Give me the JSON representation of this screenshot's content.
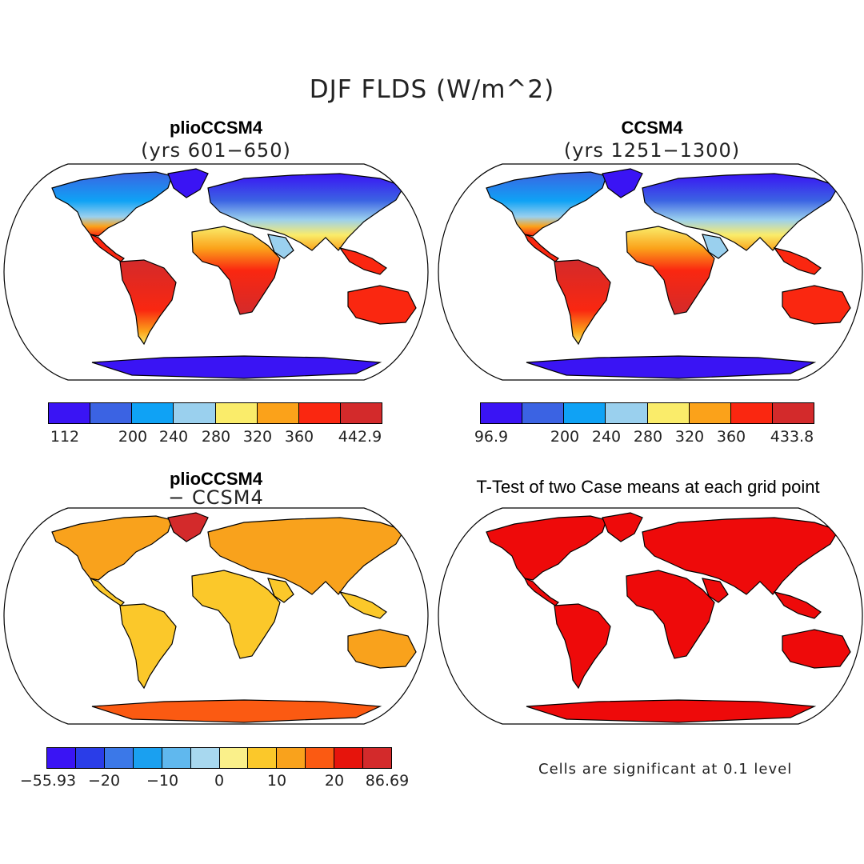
{
  "title": "DJF FLDS (W/m^2)",
  "panels": [
    {
      "title": "plioCCSM4",
      "subtitle": "(yrs 601−650)",
      "colors": [
        "#3a14f4",
        "#3b63e3",
        "#0fa2f5",
        "#9ad0ee",
        "#faec6a",
        "#fba21a",
        "#fa2710",
        "#d32a2b"
      ],
      "ticks": [
        "112",
        "200",
        "240",
        "280",
        "320",
        "360",
        "442.9"
      ]
    },
    {
      "title": "CCSM4",
      "subtitle": "(yrs 1251−1300)",
      "colors": [
        "#3a14f4",
        "#3b63e3",
        "#0fa2f5",
        "#9ad0ee",
        "#faec6a",
        "#fba21a",
        "#fa2710",
        "#d32a2b"
      ],
      "ticks": [
        "96.9",
        "200",
        "240",
        "280",
        "320",
        "360",
        "433.8"
      ]
    },
    {
      "title": "plioCCSM4",
      "subtitle": "− CCSM4",
      "colors": [
        "#3a14f4",
        "#2a3de8",
        "#3b78e8",
        "#1aa0f0",
        "#60b8ee",
        "#a8d8ef",
        "#faf08a",
        "#fbc82a",
        "#f9a21c",
        "#fb5a12",
        "#e6140c",
        "#d32a2b"
      ],
      "ticks": [
        "−55.93",
        "−20",
        "−10",
        "0",
        "10",
        "20",
        "86.69"
      ]
    },
    {
      "title": "T-Test of two Case means at each grid point",
      "note": "Cells are significant at 0.1 level",
      "color": "#ee0a0a"
    }
  ]
}
